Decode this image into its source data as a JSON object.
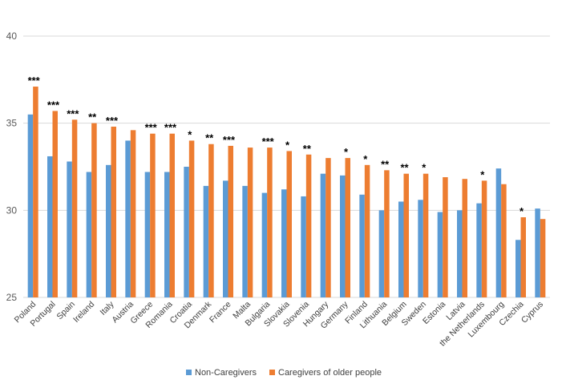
{
  "chart_data": {
    "type": "bar",
    "title": "",
    "xlabel": "",
    "ylabel": "",
    "ylim": [
      25,
      40
    ],
    "yticks": [
      "25",
      "30",
      "35",
      "40"
    ],
    "grid": true,
    "legend_position": "bottom",
    "categories": [
      "Poland",
      "Portugal",
      "Spain",
      "Ireland",
      "Italy",
      "Austria",
      "Greece",
      "Romania",
      "Croatia",
      "Denmark",
      "France",
      "Malta",
      "Bulgaria",
      "Slovakia",
      "Slovenia",
      "Hungary",
      "Germany",
      "Finland",
      "Lithuania",
      "Belgium",
      "Sweden",
      "Estonia",
      "Latvia",
      "the Netherlands",
      "Luxembourg",
      "Czechia",
      "Cyprus"
    ],
    "series": [
      {
        "name": "Non-Caregivers",
        "color": "#5B9BD5",
        "values": [
          35.5,
          33.1,
          32.8,
          32.2,
          32.6,
          34.0,
          32.2,
          32.2,
          32.5,
          31.4,
          31.7,
          31.4,
          31.0,
          31.2,
          30.8,
          32.1,
          32.0,
          30.9,
          30.0,
          30.5,
          30.6,
          29.9,
          30.0,
          30.4,
          32.4,
          28.3,
          30.1
        ]
      },
      {
        "name": "Caregivers of older people",
        "color": "#ED7D31",
        "values": [
          37.1,
          35.7,
          35.2,
          35.0,
          34.8,
          34.6,
          34.4,
          34.4,
          34.0,
          33.8,
          33.7,
          33.6,
          33.6,
          33.4,
          33.2,
          33.0,
          33.0,
          32.6,
          32.3,
          32.1,
          32.1,
          31.9,
          31.8,
          31.7,
          31.5,
          29.6,
          29.5
        ]
      }
    ],
    "significance": [
      "***",
      "***",
      "***",
      "**",
      "***",
      "",
      "***",
      "***",
      "*",
      "**",
      "***",
      "",
      "***",
      "*",
      "**",
      "",
      "*",
      "*",
      "**",
      "**",
      "*",
      "",
      "",
      "*",
      "",
      "*",
      ""
    ]
  }
}
